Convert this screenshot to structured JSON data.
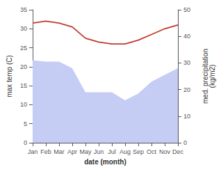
{
  "chart_data": {
    "type": "line",
    "categories": [
      "Jan",
      "Feb",
      "Mar",
      "Apr",
      "May",
      "Jun",
      "Jul",
      "Aug",
      "Sep",
      "Oct",
      "Nov",
      "Dec"
    ],
    "series": [
      {
        "type": "area",
        "color": "#c5cdf5",
        "axis": "y2",
        "values": [
          31.0,
          30.5,
          30.5,
          28.0,
          19.0,
          19.0,
          19.0,
          16.0,
          18.5,
          23.0,
          25.5,
          28.0
        ]
      },
      {
        "type": "line",
        "color": "#c0392b",
        "values": [
          31.5,
          32.0,
          31.5,
          30.5,
          27.5,
          26.5,
          26.0,
          26.0,
          27.0,
          28.5,
          30.0,
          31.0
        ]
      }
    ],
    "xlabel": "date (month)",
    "ylabel": "max temp (C)",
    "y2label": "med. precipitation\n(kg/m2)",
    "ylim": [
      0,
      35
    ],
    "yticks": [
      0,
      5,
      10,
      15,
      20,
      25,
      30,
      35
    ],
    "y2lim": [
      0,
      50
    ],
    "y2ticks": [
      0,
      10,
      20,
      30,
      40,
      50
    ],
    "grid": false
  }
}
